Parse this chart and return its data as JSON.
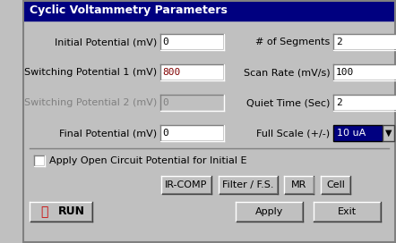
{
  "title": "Cyclic Voltammetry Parameters",
  "title_bg": "#000080",
  "title_fg": "#ffffff",
  "bg_color": "#c0c0c0",
  "fields_left": [
    {
      "label": "Initial Potential (mV)",
      "value": "0",
      "enabled": true
    },
    {
      "label": "Switching Potential 1 (mV)",
      "value": "800",
      "enabled": true
    },
    {
      "label": "Switching Potential 2 (mV)",
      "value": "0",
      "enabled": false
    },
    {
      "label": "Final Potential (mV)",
      "value": "0",
      "enabled": true
    }
  ],
  "fields_right": [
    {
      "label": "# of Segments",
      "value": "2",
      "enabled": true,
      "dropdown": false
    },
    {
      "label": "Scan Rate (mV/s)",
      "value": "100",
      "enabled": true,
      "dropdown": false
    },
    {
      "label": "Quiet Time (Sec)",
      "value": "2",
      "enabled": true,
      "dropdown": false
    },
    {
      "label": "Full Scale (+/-)",
      "value": "10 uA",
      "enabled": true,
      "dropdown": true
    }
  ],
  "checkbox_label": "Apply Open Circuit Potential for Initial E",
  "buttons_row1": [
    "IR-COMP",
    "Filter / F.S.",
    "MR",
    "Cell"
  ],
  "buttons_row2_left": [
    "RUN"
  ],
  "buttons_row2_right": [
    "Apply",
    "Exit"
  ],
  "field_bg": "#ffffff",
  "field_disabled_bg": "#c0c0c0",
  "button_bg": "#c0c0c0",
  "dropdown_bg": "#000080",
  "dropdown_fg": "#ffffff"
}
